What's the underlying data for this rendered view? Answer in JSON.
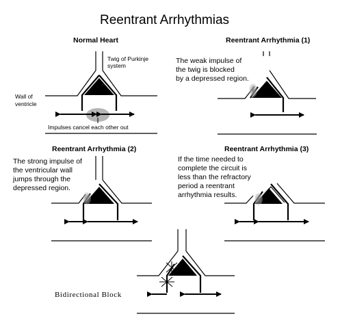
{
  "title": "Reentrant Arrhythmias",
  "panels": {
    "normal": {
      "heading": "Normal Heart",
      "purkinje_label": [
        "Twig of Purkinje",
        "system"
      ],
      "wall_label": [
        "Wall of",
        "ventricle"
      ],
      "impulses_label": "Impulses cancel each other out"
    },
    "reentrant1": {
      "heading": "Reentrant Arrhythmia (1)",
      "text": [
        "The weak impulse of",
        "the twig is blocked",
        "by a depressed region."
      ]
    },
    "reentrant2": {
      "heading": "Reentrant Arrhythmia (2)",
      "text": [
        "The strong impulse of",
        "the ventricular wall",
        "jumps through the",
        "depressed region."
      ]
    },
    "reentrant3": {
      "heading": "Reentrant Arrhythmia (3)",
      "text": [
        "If the time needed to",
        "complete the circuit is",
        "less than the refractory",
        "period a reentrant",
        "arrhythmia results."
      ]
    },
    "bidirectional": {
      "label": "Bidirectional Block"
    }
  }
}
